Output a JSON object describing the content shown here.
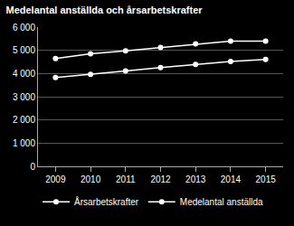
{
  "chart_data": {
    "type": "line",
    "title": "Medelantal anställda och årsarbetskrafter",
    "categories": [
      "2009",
      "2010",
      "2011",
      "2012",
      "2013",
      "2014",
      "2015"
    ],
    "series": [
      {
        "name": "Årsarbetskrafter",
        "color": "#ffffff",
        "marker": "circle",
        "values": [
          3830,
          3960,
          4110,
          4260,
          4390,
          4520,
          4610
        ]
      },
      {
        "name": "Medelantal anställda",
        "color": "#ffffff",
        "marker": "circle",
        "values": [
          4650,
          4850,
          4980,
          5120,
          5280,
          5400,
          5400
        ]
      }
    ],
    "ylim": [
      0,
      6000
    ],
    "yticks": [
      0,
      {
        "value": 1000,
        "label": "1 000"
      },
      {
        "value": 2000,
        "label": "2 000"
      },
      {
        "value": 3000,
        "label": "3 000"
      },
      {
        "value": 4000,
        "label": "4 000"
      },
      {
        "value": 5000,
        "label": "5 000"
      },
      {
        "value": 6000,
        "label": "6 000"
      }
    ],
    "grid": true,
    "legend": "bottom"
  }
}
